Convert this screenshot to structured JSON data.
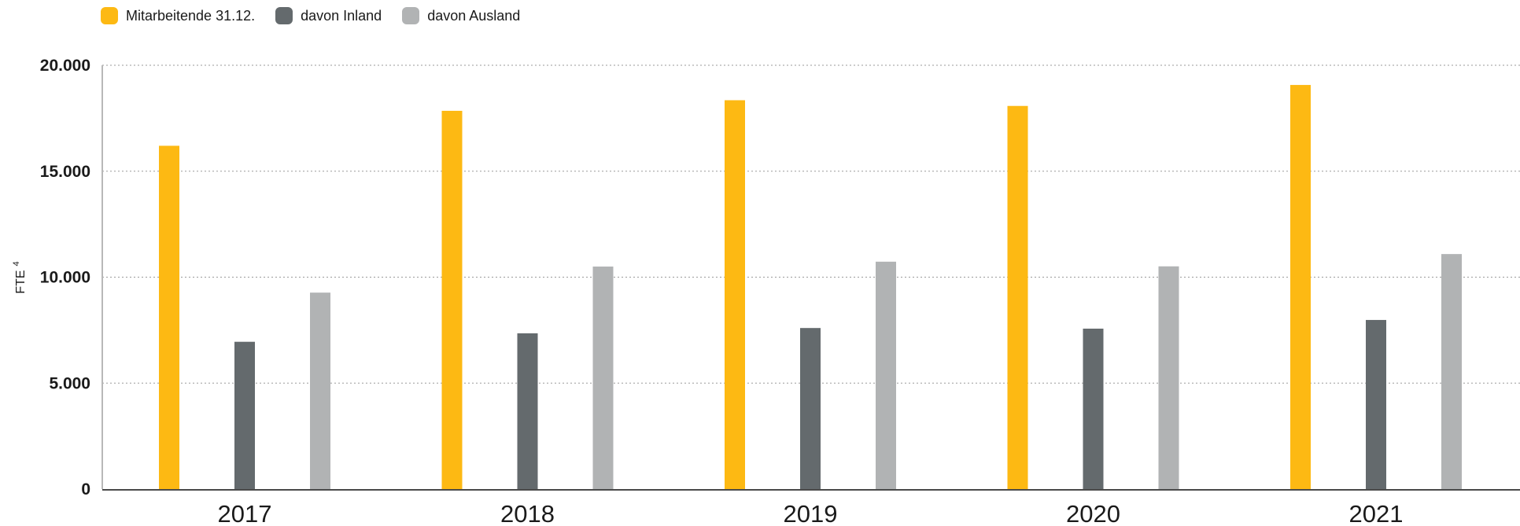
{
  "chart_data": {
    "type": "bar",
    "title": "",
    "xlabel": "",
    "ylabel": "FTE",
    "ylabel_superscript": "4",
    "categories": [
      "2017",
      "2018",
      "2019",
      "2020",
      "2021"
    ],
    "series": [
      {
        "name": "Mitarbeitende 31.12.",
        "color": "#FDB913",
        "values": [
          16200,
          17850,
          18350,
          18080,
          19070
        ]
      },
      {
        "name": "davon Inland",
        "color": "#646A6D",
        "values": [
          6950,
          7350,
          7600,
          7570,
          7980
        ]
      },
      {
        "name": "davon Ausland",
        "color": "#B1B3B4",
        "values": [
          9270,
          10500,
          10730,
          10510,
          11090
        ]
      }
    ],
    "ylim": [
      0,
      20000
    ],
    "yticks": [
      0,
      5000,
      10000,
      15000,
      20000
    ],
    "ytick_labels": [
      "0",
      "5.000",
      "10.000",
      "15.000",
      "20.000"
    ],
    "grid": true,
    "legend_position": "top-left"
  }
}
